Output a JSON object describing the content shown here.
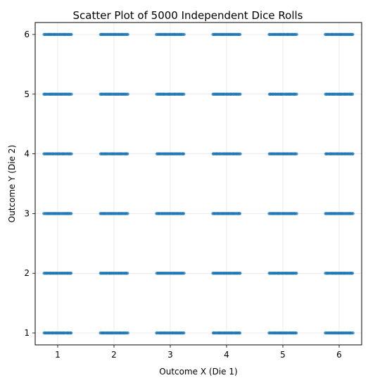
{
  "chart_data": {
    "type": "scatter",
    "title": "Scatter Plot of 5000 Independent Dice Rolls",
    "xlabel": "Outcome X (Die 1)",
    "ylabel": "Outcome Y (Die 2)",
    "xlim": [
      0.6,
      6.4
    ],
    "ylim": [
      0.8,
      6.2
    ],
    "x_ticks": [
      "1",
      "2",
      "3",
      "4",
      "5",
      "6"
    ],
    "y_ticks": [
      "1",
      "2",
      "3",
      "4",
      "5",
      "6"
    ],
    "grid": true,
    "jitter_x": [
      -0.25,
      0.25
    ],
    "point_color": "#1f77b4",
    "outcomes": [
      1,
      2,
      3,
      4,
      5,
      6
    ]
  }
}
